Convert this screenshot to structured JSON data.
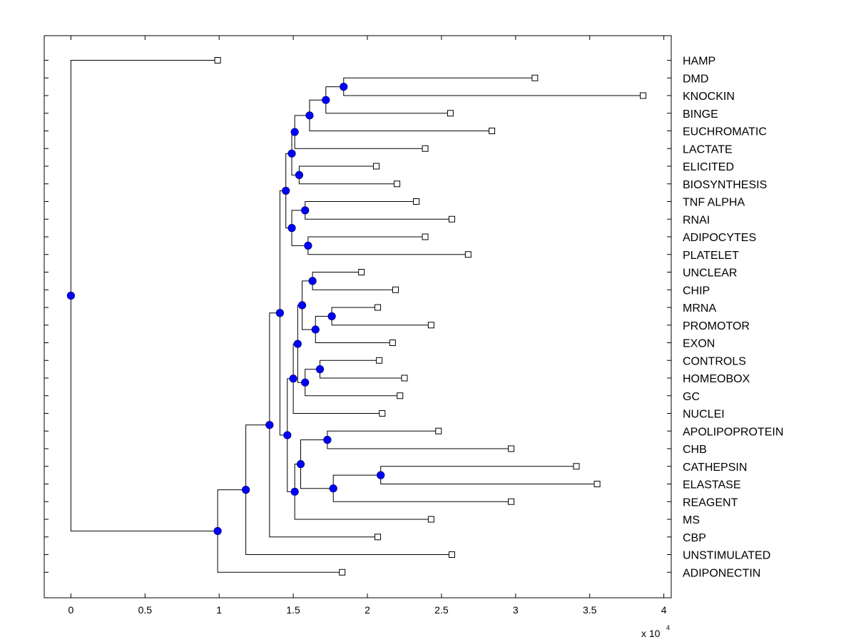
{
  "chart_data": {
    "type": "dendrogram",
    "x_axis": {
      "range": [
        -0.18,
        4.05
      ],
      "ticks": [
        0,
        0.5,
        1,
        1.5,
        2,
        2.5,
        3,
        3.5,
        4
      ],
      "tick_labels": [
        "0",
        "0.5",
        "1",
        "1.5",
        "2",
        "2.5",
        "3",
        "3.5",
        "4"
      ],
      "multiplier_label": "x 10",
      "multiplier_exponent": "4"
    },
    "colors": {
      "node": "#0000ff",
      "line": "#000000",
      "leaf_fill": "#ffffff"
    },
    "leaves": [
      {
        "name": "HAMP",
        "x": 0.99
      },
      {
        "name": "DMD",
        "x": 3.13
      },
      {
        "name": "KNOCKIN",
        "x": 3.86
      },
      {
        "name": "BINGE",
        "x": 2.56
      },
      {
        "name": "EUCHROMATIC",
        "x": 2.84
      },
      {
        "name": "LACTATE",
        "x": 2.39
      },
      {
        "name": "ELICITED",
        "x": 2.06
      },
      {
        "name": "BIOSYNTHESIS",
        "x": 2.2
      },
      {
        "name": "TNF ALPHA",
        "x": 2.33
      },
      {
        "name": "RNAI",
        "x": 2.57
      },
      {
        "name": "ADIPOCYTES",
        "x": 2.39
      },
      {
        "name": "PLATELET",
        "x": 2.68
      },
      {
        "name": "UNCLEAR",
        "x": 1.96
      },
      {
        "name": "CHIP",
        "x": 2.19
      },
      {
        "name": "MRNA",
        "x": 2.07
      },
      {
        "name": "PROMOTOR",
        "x": 2.43
      },
      {
        "name": "EXON",
        "x": 2.17
      },
      {
        "name": "CONTROLS",
        "x": 2.08
      },
      {
        "name": "HOMEOBOX",
        "x": 2.25
      },
      {
        "name": "GC",
        "x": 2.22
      },
      {
        "name": "NUCLEI",
        "x": 2.1
      },
      {
        "name": "APOLIPOPROTEIN",
        "x": 2.48
      },
      {
        "name": "CHB",
        "x": 2.97
      },
      {
        "name": "CATHEPSIN",
        "x": 3.41
      },
      {
        "name": "ELASTASE",
        "x": 3.55
      },
      {
        "name": "REAGENT",
        "x": 2.97
      },
      {
        "name": "MS",
        "x": 2.43
      },
      {
        "name": "CBP",
        "x": 2.07
      },
      {
        "name": "UNSTIMULATED",
        "x": 2.57
      },
      {
        "name": "ADIPONECTIN",
        "x": 1.83
      }
    ],
    "nodes": [
      {
        "id": "A",
        "x": 1.84,
        "top": "DMD",
        "bottom": "KNOCKIN"
      },
      {
        "id": "B",
        "x": 1.72,
        "top": "A",
        "bottom": "BINGE"
      },
      {
        "id": "C",
        "x": 1.61,
        "top": "B",
        "bottom": "EUCHROMATIC"
      },
      {
        "id": "D",
        "x": 1.51,
        "top": "C",
        "bottom": "LACTATE"
      },
      {
        "id": "E",
        "x": 1.54,
        "top": "ELICITED",
        "bottom": "BIOSYNTHESIS"
      },
      {
        "id": "F",
        "x": 1.49,
        "top": "D",
        "bottom": "E"
      },
      {
        "id": "G",
        "x": 1.58,
        "top": "TNF ALPHA",
        "bottom": "RNAI"
      },
      {
        "id": "H",
        "x": 1.6,
        "top": "ADIPOCYTES",
        "bottom": "PLATELET"
      },
      {
        "id": "I",
        "x": 1.49,
        "top": "G",
        "bottom": "H"
      },
      {
        "id": "J",
        "x": 1.45,
        "top": "F",
        "bottom": "I"
      },
      {
        "id": "K",
        "x": 1.63,
        "top": "UNCLEAR",
        "bottom": "CHIP"
      },
      {
        "id": "L",
        "x": 1.76,
        "top": "MRNA",
        "bottom": "PROMOTOR"
      },
      {
        "id": "M",
        "x": 1.65,
        "top": "L",
        "bottom": "EXON"
      },
      {
        "id": "N",
        "x": 1.56,
        "top": "K",
        "bottom": "M"
      },
      {
        "id": "O",
        "x": 1.68,
        "top": "CONTROLS",
        "bottom": "HOMEOBOX"
      },
      {
        "id": "P",
        "x": 1.58,
        "top": "O",
        "bottom": "GC"
      },
      {
        "id": "Q",
        "x": 1.53,
        "top": "N",
        "bottom": "P"
      },
      {
        "id": "R",
        "x": 1.5,
        "top": "Q",
        "bottom": "NUCLEI"
      },
      {
        "id": "S",
        "x": 1.73,
        "top": "APOLIPOPROTEIN",
        "bottom": "CHB"
      },
      {
        "id": "T",
        "x": 2.09,
        "top": "CATHEPSIN",
        "bottom": "ELASTASE"
      },
      {
        "id": "U",
        "x": 1.77,
        "top": "T",
        "bottom": "REAGENT"
      },
      {
        "id": "V",
        "x": 1.55,
        "top": "S",
        "bottom": "U"
      },
      {
        "id": "W",
        "x": 1.51,
        "top": "V",
        "bottom": "MS"
      },
      {
        "id": "X",
        "x": 1.46,
        "top": "R",
        "bottom": "W"
      },
      {
        "id": "Y",
        "x": 1.41,
        "top": "J",
        "bottom": "X"
      },
      {
        "id": "Z",
        "x": 1.34,
        "top": "Y",
        "bottom": "CBP"
      },
      {
        "id": "AA",
        "x": 1.18,
        "top": "Z",
        "bottom": "UNSTIMULATED"
      },
      {
        "id": "AB",
        "x": 0.99,
        "top": "AA",
        "bottom": "ADIPONECTIN"
      },
      {
        "id": "ROOT",
        "x": 0.0,
        "top": "HAMP",
        "bottom": "AB"
      }
    ]
  }
}
